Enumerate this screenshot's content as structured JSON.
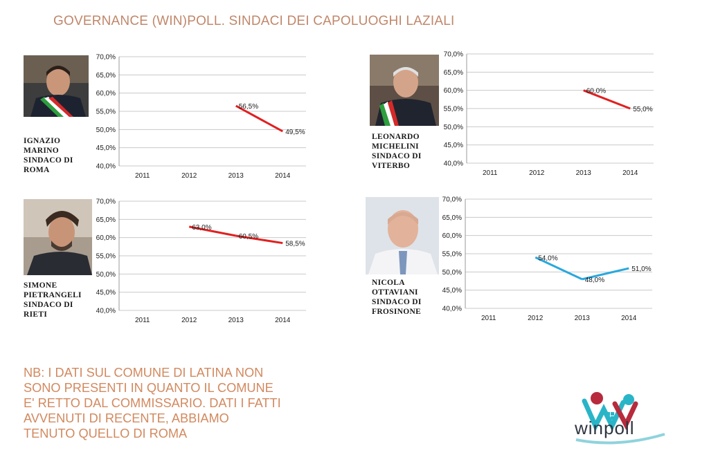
{
  "page": {
    "title": "GOVERNANCE (WIN)POLL. SINDACI DEI CAPOLUOGHI LAZIALI"
  },
  "note": "NB: I DATI SUL COMUNE DI LATINA NON\nSONO PRESENTI IN QUANTO IL COMUNE\nE' RETTO DAL COMMISSARIO. DATI I FATTI\nAVVENUTI DI RECENTE, ABBIAMO\nTENUTO QUELLO DI ROMA",
  "logo": {
    "text": "winpoll"
  },
  "mayors": [
    {
      "caption": "IGNAZIO\nMARINO\nSINDACO DI\nROMA",
      "photo_bg": "#4a4a4a"
    },
    {
      "caption": "LEONARDO\nMICHELINI\nSINDACO DI\nVITERBO",
      "photo_bg": "#6a6a6a"
    },
    {
      "caption": "SIMONE\nPIETRANGELI\nSINDACO DI\nRIETI",
      "photo_bg": "#8a8a8a"
    },
    {
      "caption": "NICOLA\nOTTAVIANI\nSINDACO DI\nFROSINONE",
      "photo_bg": "#cfd6dc"
    }
  ],
  "chart_data": [
    {
      "type": "line",
      "categories": [
        "2011",
        "2012",
        "2013",
        "2014"
      ],
      "series": [
        {
          "values": [
            null,
            null,
            56.5,
            49.5
          ],
          "labels": [
            "",
            "",
            "56,5%",
            "49,5%"
          ],
          "color": "#e02020"
        }
      ],
      "ylim": [
        40,
        70
      ],
      "yticks": [
        "40,0%",
        "45,0%",
        "50,0%",
        "55,0%",
        "60,0%",
        "65,0%",
        "70,0%"
      ],
      "grid": true
    },
    {
      "type": "line",
      "categories": [
        "2011",
        "2012",
        "2013",
        "2014"
      ],
      "series": [
        {
          "values": [
            null,
            null,
            60.0,
            55.0
          ],
          "labels": [
            "",
            "",
            "60,0%",
            "55,0%"
          ],
          "color": "#e02020"
        }
      ],
      "ylim": [
        40,
        70
      ],
      "yticks": [
        "40,0%",
        "45,0%",
        "50,0%",
        "55,0%",
        "60,0%",
        "65,0%",
        "70,0%"
      ],
      "grid": true
    },
    {
      "type": "line",
      "categories": [
        "2011",
        "2012",
        "2013",
        "2014"
      ],
      "series": [
        {
          "values": [
            null,
            63.0,
            60.5,
            58.5
          ],
          "labels": [
            "",
            "63,0%",
            "60,5%",
            "58,5%"
          ],
          "color": "#e02020"
        }
      ],
      "ylim": [
        40,
        70
      ],
      "yticks": [
        "40,0%",
        "45,0%",
        "50,0%",
        "55,0%",
        "60,0%",
        "65,0%",
        "70,0%"
      ],
      "grid": true
    },
    {
      "type": "line",
      "categories": [
        "2011",
        "2012",
        "2013",
        "2014"
      ],
      "series": [
        {
          "values": [
            null,
            54.0,
            48.0,
            51.0
          ],
          "labels": [
            "",
            "54,0%",
            "48,0%",
            "51,0%"
          ],
          "color": "#29a8dd"
        }
      ],
      "ylim": [
        40,
        70
      ],
      "yticks": [
        "40,0%",
        "45,0%",
        "50,0%",
        "55,0%",
        "60,0%",
        "65,0%",
        "70,0%"
      ],
      "grid": true
    }
  ]
}
